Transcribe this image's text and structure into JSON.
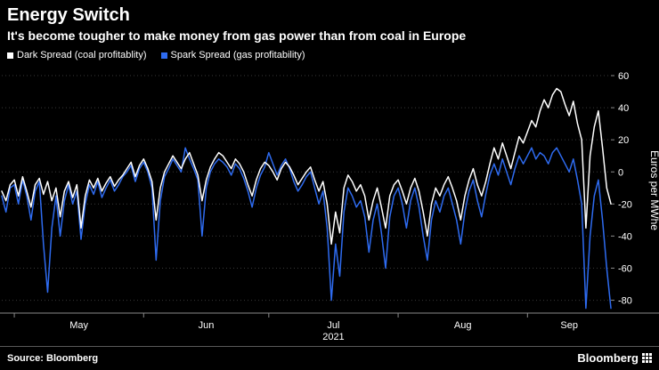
{
  "header": {
    "title": "Energy Switch",
    "subtitle": "It's become tougher to make money from gas power than from coal in Europe"
  },
  "footer": {
    "source": "Source: Bloomberg",
    "brand": "Bloomberg"
  },
  "chart_data": {
    "type": "line",
    "title": "Energy Switch",
    "subtitle": "It's become tougher to make money from gas power than from coal in Europe",
    "ylabel": "Euros per MWhe",
    "ylim": [
      -88,
      65
    ],
    "xlim": [
      0,
      146
    ],
    "yticks": [
      60,
      40,
      20,
      0,
      -20,
      -40,
      -60,
      -80
    ],
    "xticks": {
      "tick_days": [
        3,
        34,
        64,
        95,
        126
      ],
      "labels": [
        {
          "pos": 18.5,
          "text": "May"
        },
        {
          "pos": 49,
          "text": "Jun"
        },
        {
          "pos": 79.5,
          "text": "Jul"
        },
        {
          "pos": 110.5,
          "text": "Aug"
        },
        {
          "pos": 136,
          "text": "Sep"
        }
      ],
      "year": {
        "pos": 79.5,
        "text": "2021"
      }
    },
    "colors": {
      "grid": "#3a3a3a",
      "axis": "#8a8a8a",
      "tick_text": "#ffffff"
    },
    "legend_position": "top-left",
    "series": [
      {
        "name": "Dark Spread (coal profitablity)",
        "color": "#ffffff",
        "values": [
          -12,
          -18,
          -8,
          -5,
          -15,
          -3,
          -12,
          -22,
          -8,
          -4,
          -14,
          -6,
          -18,
          -10,
          -28,
          -12,
          -6,
          -16,
          -8,
          -35,
          -15,
          -5,
          -10,
          -4,
          -12,
          -7,
          -3,
          -9,
          -5,
          -2,
          2,
          6,
          -3,
          4,
          8,
          2,
          -6,
          -30,
          -10,
          0,
          5,
          10,
          6,
          2,
          8,
          12,
          5,
          -2,
          -18,
          -5,
          3,
          8,
          12,
          10,
          6,
          2,
          8,
          5,
          0,
          -8,
          -15,
          -5,
          2,
          6,
          4,
          0,
          -5,
          2,
          6,
          3,
          -2,
          -8,
          -4,
          0,
          3,
          -5,
          -12,
          -6,
          -20,
          -45,
          -25,
          -38,
          -10,
          -2,
          -6,
          -12,
          -8,
          -15,
          -30,
          -18,
          -10,
          -22,
          -35,
          -15,
          -8,
          -5,
          -12,
          -20,
          -10,
          -4,
          -12,
          -25,
          -40,
          -20,
          -10,
          -15,
          -8,
          -3,
          -10,
          -18,
          -30,
          -15,
          -5,
          2,
          -8,
          -15,
          -6,
          5,
          15,
          8,
          18,
          10,
          2,
          12,
          22,
          18,
          25,
          32,
          28,
          38,
          45,
          40,
          48,
          52,
          50,
          42,
          35,
          44,
          30,
          20,
          -35,
          10,
          28,
          38,
          15,
          -10,
          -20
        ]
      },
      {
        "name": "Spark Spread (gas profitability)",
        "color": "#2e6bf0",
        "values": [
          -15,
          -25,
          -10,
          -8,
          -20,
          -5,
          -15,
          -30,
          -12,
          -6,
          -45,
          -75,
          -35,
          -15,
          -40,
          -18,
          -8,
          -20,
          -12,
          -42,
          -20,
          -8,
          -14,
          -6,
          -16,
          -10,
          -5,
          -12,
          -8,
          -3,
          0,
          4,
          -6,
          2,
          6,
          0,
          -10,
          -55,
          -18,
          -3,
          2,
          8,
          4,
          0,
          15,
          8,
          2,
          -5,
          -40,
          -10,
          0,
          5,
          8,
          6,
          3,
          -2,
          5,
          2,
          -4,
          -12,
          -22,
          -10,
          -2,
          3,
          12,
          5,
          -2,
          4,
          8,
          2,
          -6,
          -12,
          -8,
          -3,
          0,
          -10,
          -20,
          -12,
          -35,
          -80,
          -45,
          -65,
          -25,
          -10,
          -15,
          -22,
          -18,
          -28,
          -50,
          -30,
          -20,
          -38,
          -60,
          -28,
          -15,
          -10,
          -20,
          -35,
          -18,
          -10,
          -22,
          -40,
          -55,
          -30,
          -18,
          -25,
          -15,
          -10,
          -20,
          -30,
          -45,
          -25,
          -12,
          -5,
          -18,
          -28,
          -14,
          -2,
          5,
          -2,
          8,
          0,
          -8,
          2,
          10,
          5,
          10,
          15,
          8,
          12,
          10,
          5,
          12,
          15,
          10,
          5,
          0,
          8,
          -5,
          -20,
          -85,
          -40,
          -15,
          -5,
          -30,
          -60,
          -85
        ]
      }
    ]
  }
}
